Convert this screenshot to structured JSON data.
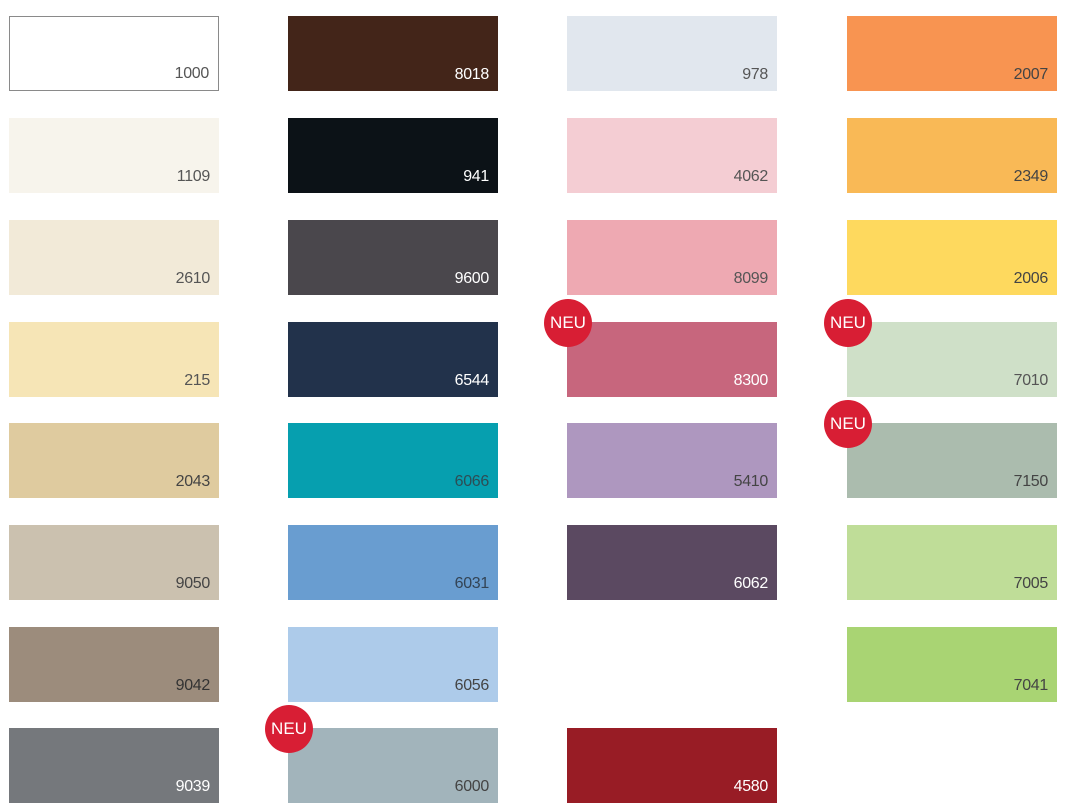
{
  "badge_label": "NEU",
  "badge_color": "#d81e34",
  "columns": [
    [
      {
        "code": "1000",
        "color": "#ffffff",
        "text": "#555555",
        "border": true
      },
      {
        "code": "1109",
        "color": "#f7f4ec",
        "text": "#555555"
      },
      {
        "code": "2610",
        "color": "#f2ead8",
        "text": "#555555"
      },
      {
        "code": "215",
        "color": "#f6e5b6",
        "text": "#555555"
      },
      {
        "code": "2043",
        "color": "#dfcb9f",
        "text": "#444444"
      },
      {
        "code": "9050",
        "color": "#cbc1af",
        "text": "#444444"
      },
      {
        "code": "9042",
        "color": "#9c8c7c",
        "text": "#333333"
      },
      {
        "code": "9039",
        "color": "#75787c",
        "text": "#ffffff"
      }
    ],
    [
      {
        "code": "8018",
        "color": "#432519",
        "text": "#ffffff"
      },
      {
        "code": "941",
        "color": "#0c1217",
        "text": "#ffffff"
      },
      {
        "code": "9600",
        "color": "#4a474c",
        "text": "#ffffff"
      },
      {
        "code": "6544",
        "color": "#22324b",
        "text": "#ffffff"
      },
      {
        "code": "6066",
        "color": "#069faf",
        "text": "#2d4d55"
      },
      {
        "code": "6031",
        "color": "#699dd0",
        "text": "#334455"
      },
      {
        "code": "6056",
        "color": "#adcbea",
        "text": "#444444"
      },
      {
        "code": "6000",
        "color": "#a2b4bb",
        "text": "#444444",
        "neu": true
      }
    ],
    [
      {
        "code": "978",
        "color": "#e1e7ee",
        "text": "#555555"
      },
      {
        "code": "4062",
        "color": "#f4cdd3",
        "text": "#555555"
      },
      {
        "code": "8099",
        "color": "#eea9b2",
        "text": "#555555"
      },
      {
        "code": "8300",
        "color": "#c7667d",
        "text": "#ffffff",
        "neu": true
      },
      {
        "code": "5410",
        "color": "#ae97bf",
        "text": "#444444"
      },
      {
        "code": "6062",
        "color": "#5b4961",
        "text": "#ffffff"
      },
      null,
      {
        "code": "4580",
        "color": "#981c25",
        "text": "#ffffff"
      }
    ],
    [
      {
        "code": "2007",
        "color": "#f89451",
        "text": "#444444"
      },
      {
        "code": "2349",
        "color": "#f9b956",
        "text": "#444444"
      },
      {
        "code": "2006",
        "color": "#fed95e",
        "text": "#444444"
      },
      {
        "code": "7010",
        "color": "#cfe0c8",
        "text": "#555555",
        "neu": true
      },
      {
        "code": "7150",
        "color": "#abbcae",
        "text": "#444444",
        "neu": true
      },
      {
        "code": "7005",
        "color": "#bfdd98",
        "text": "#444444"
      },
      {
        "code": "7041",
        "color": "#a9d473",
        "text": "#444444"
      },
      null
    ]
  ]
}
